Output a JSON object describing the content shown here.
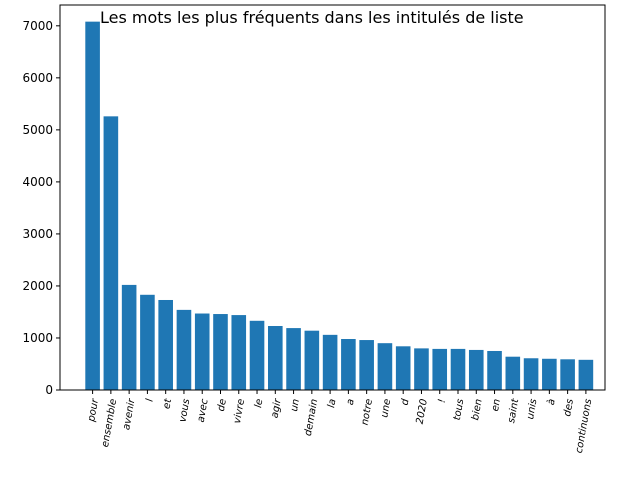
{
  "chart_data": {
    "type": "bar",
    "title": "Les mots les plus fréquents dans les intitulés de liste",
    "xlabel": "",
    "ylabel": "",
    "ylim": [
      0,
      7400
    ],
    "yticks": [
      0,
      1000,
      2000,
      3000,
      4000,
      5000,
      6000,
      7000
    ],
    "grid": false,
    "bar_color": "#1f77b4",
    "categories": [
      "pour",
      "ensemble",
      "avenir",
      "l",
      "et",
      "vous",
      "avec",
      "de",
      "vivre",
      "le",
      "agir",
      "un",
      "demain",
      "la",
      "a",
      "notre",
      "une",
      "d",
      "2020",
      "!",
      "tous",
      "bien",
      "en",
      "saint",
      "unis",
      "à",
      "des",
      "continuons"
    ],
    "values": [
      7080,
      5260,
      2020,
      1830,
      1730,
      1540,
      1470,
      1460,
      1440,
      1330,
      1230,
      1190,
      1140,
      1060,
      980,
      960,
      900,
      840,
      800,
      790,
      790,
      770,
      750,
      640,
      610,
      600,
      590,
      580
    ]
  }
}
